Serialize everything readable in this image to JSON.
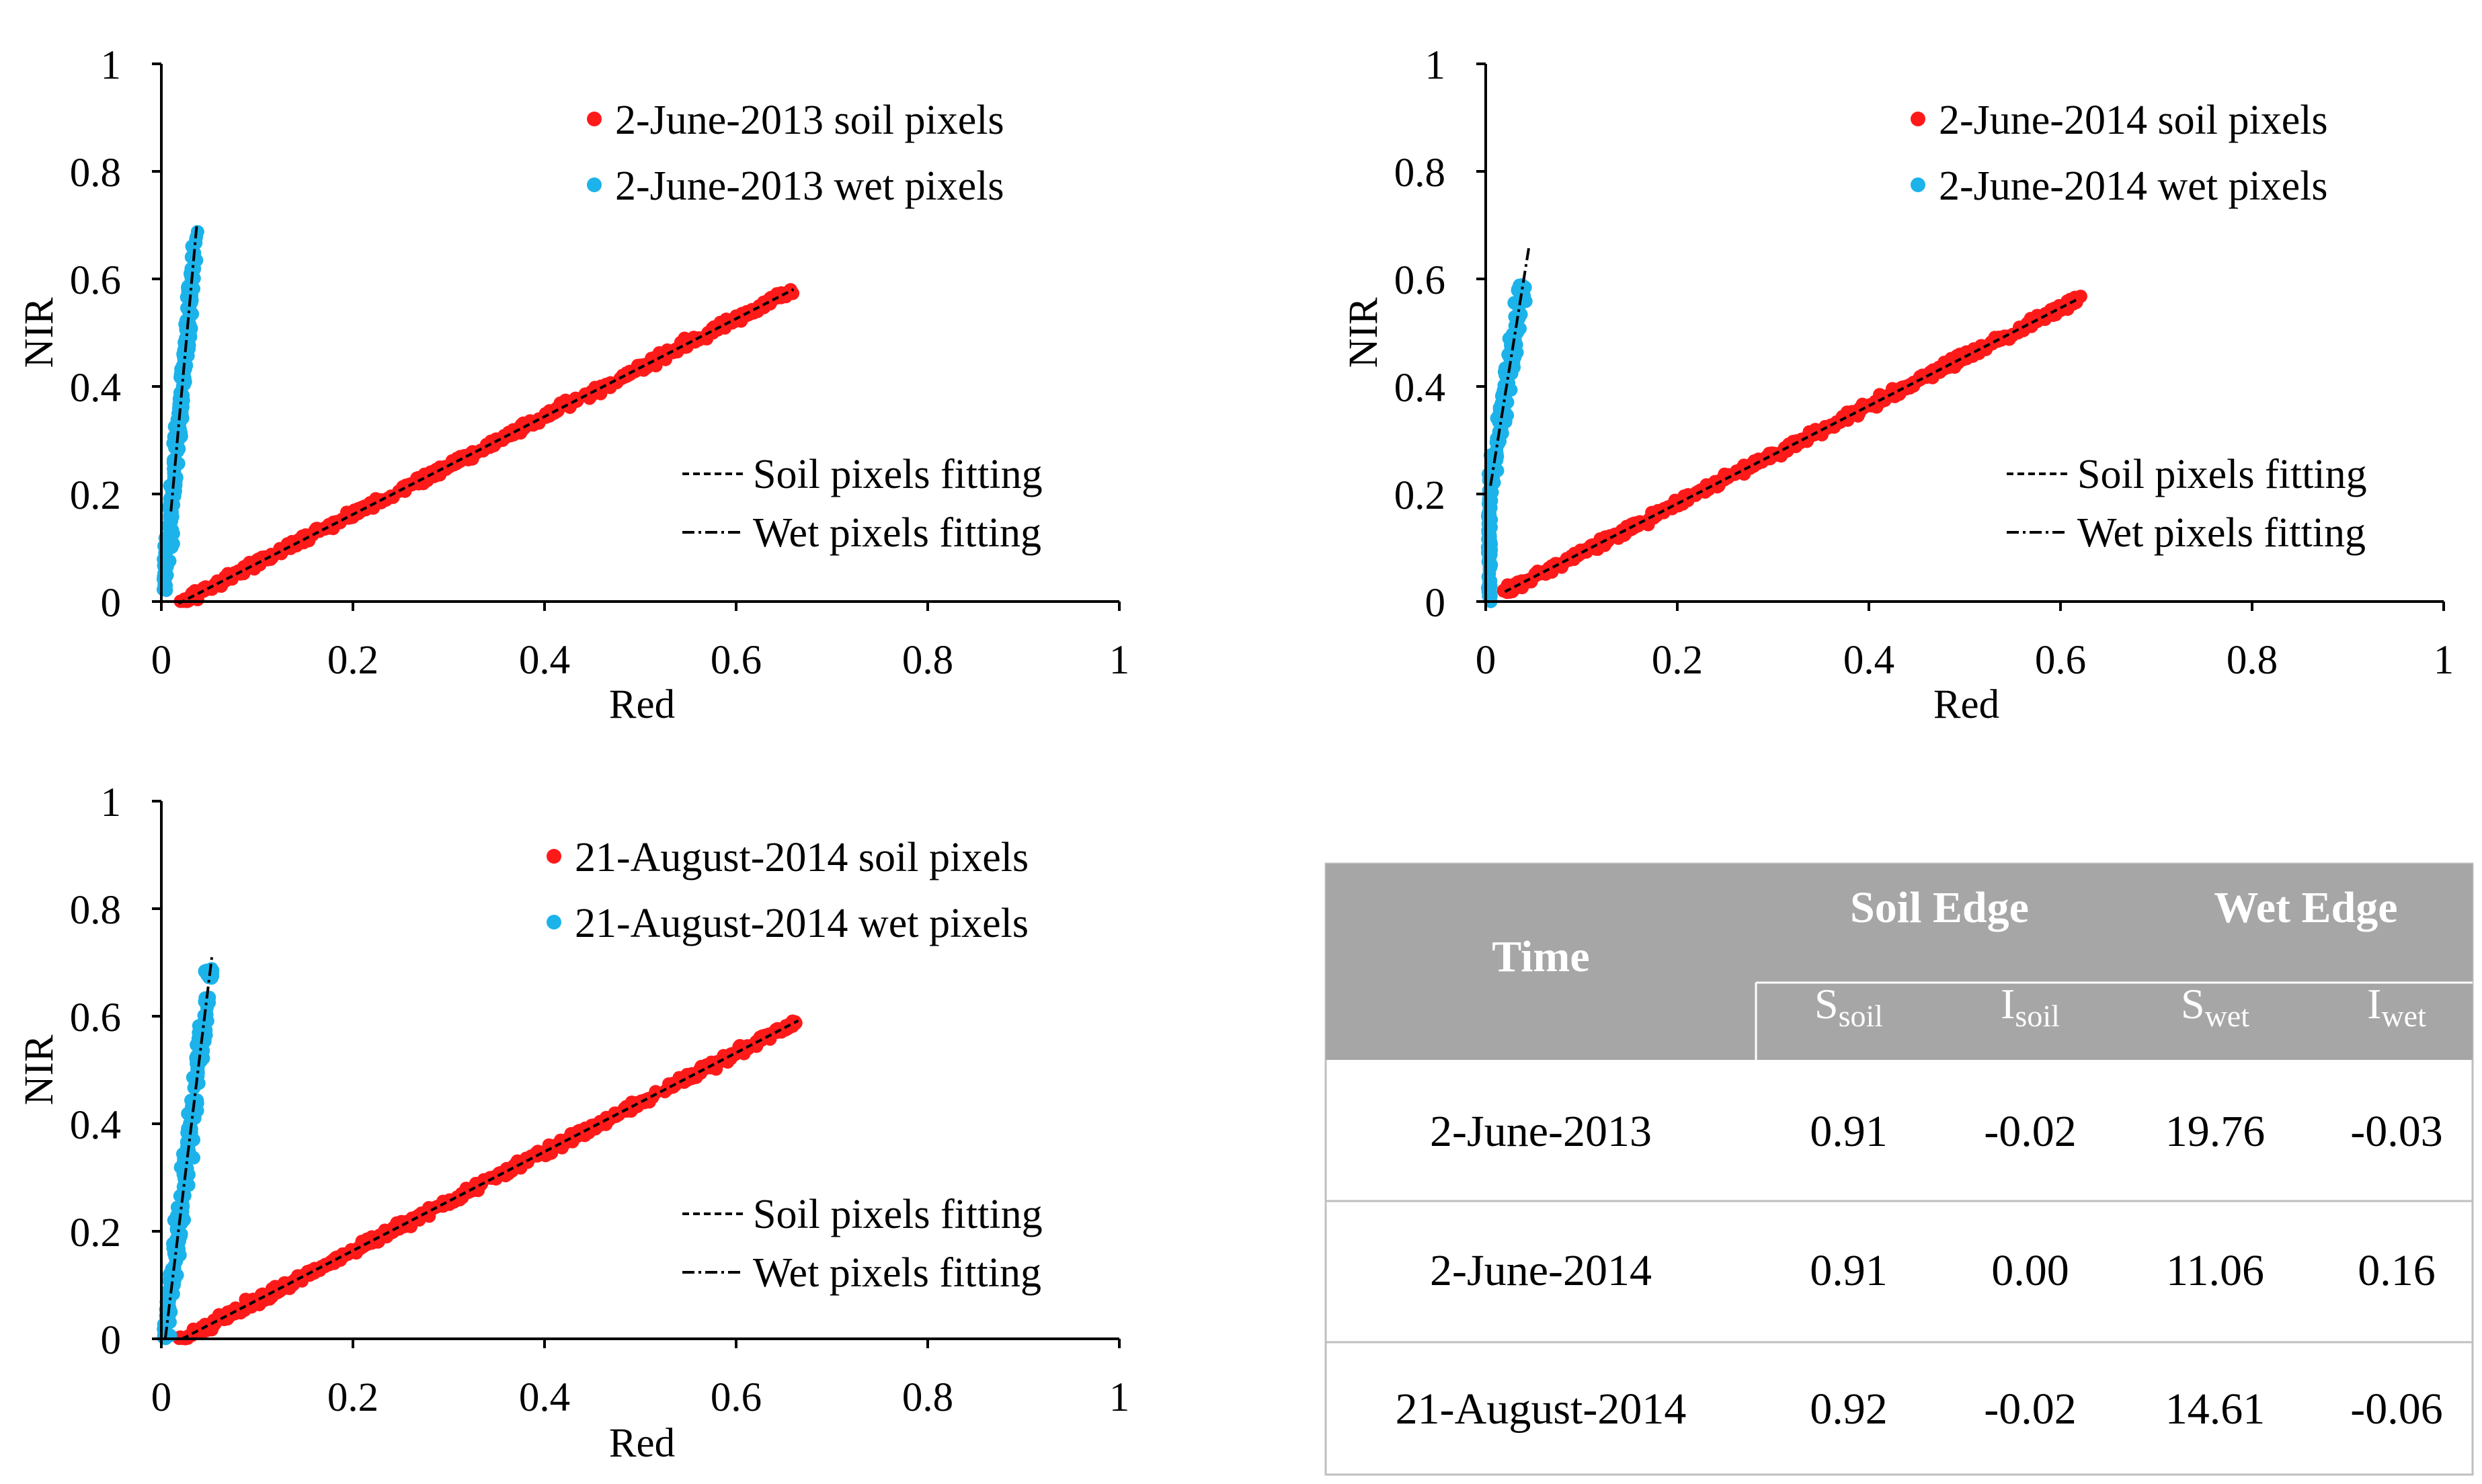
{
  "colors": {
    "soil": "#ff1a1a",
    "wet": "#1cb3ea",
    "fit_line": "#000000",
    "table_header_bg": "#a6a6a6",
    "table_header_text": "#ffffff",
    "table_rule": "#bfbfbf"
  },
  "chart_data": [
    {
      "type": "scatter",
      "xlabel": "Red",
      "ylabel": "NIR",
      "xlim": [
        0,
        1
      ],
      "ylim": [
        0,
        1
      ],
      "xticks": [
        "0",
        "0.2",
        "0.4",
        "0.6",
        "0.8",
        "1"
      ],
      "yticks": [
        "0",
        "0.2",
        "0.4",
        "0.6",
        "0.8",
        "1"
      ],
      "legend_points": [
        "2-June-2013 soil pixels",
        "2-June-2013 wet pixels"
      ],
      "legend_lines": [
        "Soil pixels fitting",
        "Wet pixels fitting"
      ],
      "soil_fit": {
        "slope": 0.91,
        "intercept": -0.02,
        "x_range": [
          0.018,
          0.66
        ]
      },
      "wet_fit": {
        "slope": 19.76,
        "intercept": -0.03,
        "x_range": [
          0.01,
          0.037
        ]
      },
      "soil_cloud": {
        "x_range": [
          0.02,
          0.66
        ],
        "spread": 0.012
      },
      "wet_cloud": {
        "y_range": [
          0.02,
          0.69
        ],
        "spread": 0.006
      }
    },
    {
      "type": "scatter",
      "xlabel": "Red",
      "ylabel": "NIR",
      "xlim": [
        0,
        1
      ],
      "ylim": [
        0,
        1
      ],
      "xticks": [
        "0",
        "0.2",
        "0.4",
        "0.6",
        "0.8",
        "1"
      ],
      "yticks": [
        "0",
        "0.2",
        "0.4",
        "0.6",
        "0.8",
        "1"
      ],
      "legend_points": [
        "2-June-2014 soil pixels",
        "2-June-2014 wet pixels"
      ],
      "legend_lines": [
        "Soil pixels fitting",
        "Wet pixels fitting"
      ],
      "soil_fit": {
        "slope": 0.91,
        "intercept": 0.0,
        "x_range": [
          0.02,
          0.62
        ]
      },
      "wet_fit": {
        "slope": 11.06,
        "intercept": 0.16,
        "x_range": [
          0.005,
          0.045
        ]
      },
      "soil_cloud": {
        "x_range": [
          0.02,
          0.62
        ],
        "spread": 0.012
      },
      "wet_cloud": {
        "y_range": [
          0.0,
          0.59
        ],
        "spread": 0.007
      }
    },
    {
      "type": "scatter",
      "xlabel": "Red",
      "ylabel": "NIR",
      "xlim": [
        0,
        1
      ],
      "ylim": [
        0,
        1
      ],
      "xticks": [
        "0",
        "0.2",
        "0.4",
        "0.6",
        "0.8",
        "1"
      ],
      "yticks": [
        "0",
        "0.2",
        "0.4",
        "0.6",
        "0.8",
        "1"
      ],
      "legend_points": [
        "21-August-2014 soil pixels",
        "21-August-2014 wet pixels"
      ],
      "legend_lines": [
        "Soil pixels fitting",
        "Wet pixels fitting"
      ],
      "soil_fit": {
        "slope": 0.92,
        "intercept": -0.02,
        "x_range": [
          0.022,
          0.665
        ]
      },
      "wet_fit": {
        "slope": 14.61,
        "intercept": -0.06,
        "x_range": [
          0.004,
          0.053
        ]
      },
      "soil_cloud": {
        "x_range": [
          0.02,
          0.665
        ],
        "spread": 0.012
      },
      "wet_cloud": {
        "y_range": [
          0.0,
          0.69
        ],
        "spread": 0.007
      }
    }
  ],
  "table": {
    "time_header": "Time",
    "soil_edge_header": "Soil Edge",
    "wet_edge_header": "Wet Edge",
    "sub_headers": [
      {
        "base": "S",
        "sub": "soil"
      },
      {
        "base": "I",
        "sub": "soil"
      },
      {
        "base": "S",
        "sub": "wet"
      },
      {
        "base": "I",
        "sub": "wet"
      }
    ],
    "rows": [
      {
        "time": "2-June-2013",
        "s_soil": "0.91",
        "i_soil": "-0.02",
        "s_wet": "19.76",
        "i_wet": "-0.03"
      },
      {
        "time": "2-June-2014",
        "s_soil": "0.91",
        "i_soil": "0.00",
        "s_wet": "11.06",
        "i_wet": "0.16"
      },
      {
        "time": "21-August-2014",
        "s_soil": "0.92",
        "i_soil": "-0.02",
        "s_wet": "14.61",
        "i_wet": "-0.06"
      }
    ]
  }
}
